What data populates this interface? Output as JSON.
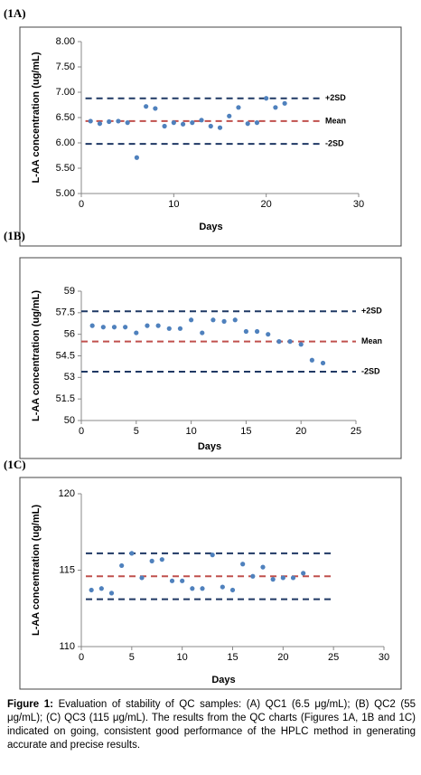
{
  "chart_data": [
    {
      "type": "scatter",
      "panel": "(1A)",
      "ylabel": "L-AA concentration (ug/mL)",
      "xlabel": "Days",
      "xlim": [
        0,
        30
      ],
      "xticks": [
        0,
        10,
        20,
        30
      ],
      "ylim": [
        5,
        8
      ],
      "yticks": [
        {
          "value": 5,
          "label": "5.00"
        },
        {
          "value": 5.5,
          "label": "5.50"
        },
        {
          "value": 6,
          "label": "6.00"
        },
        {
          "value": 6.5,
          "label": "6.50"
        },
        {
          "value": 7,
          "label": "7.00"
        },
        {
          "value": 7.5,
          "label": "7.50"
        },
        {
          "value": 8,
          "label": "8.00"
        }
      ],
      "color": "#4f81bd",
      "x": [
        1,
        2,
        3,
        4,
        5,
        6,
        7,
        8,
        9,
        10,
        11,
        12,
        13,
        14,
        15,
        16,
        17,
        18,
        19,
        20,
        21,
        22
      ],
      "values": [
        6.43,
        6.38,
        6.42,
        6.43,
        6.4,
        5.71,
        6.72,
        6.68,
        6.33,
        6.4,
        6.37,
        6.4,
        6.45,
        6.33,
        6.3,
        6.53,
        6.7,
        6.38,
        6.4,
        6.88,
        6.7,
        6.78
      ],
      "lines": [
        {
          "label": "+2SD",
          "value": 6.88,
          "color": "#1f3864"
        },
        {
          "label": "Mean",
          "value": 6.43,
          "color": "#c0504d"
        },
        {
          "label": "-2SD",
          "value": 5.98,
          "color": "#1f3864"
        }
      ]
    },
    {
      "type": "scatter",
      "panel": "(1B)",
      "ylabel": "L-AA concentration (ug/mL)",
      "xlabel": "Days",
      "xlim": [
        0,
        25
      ],
      "xticks": [
        0,
        5,
        10,
        15,
        20,
        25
      ],
      "ylim": [
        50,
        59
      ],
      "yticks": [
        50,
        51.5,
        53,
        54.5,
        56,
        57.5,
        59
      ],
      "color": "#4f81bd",
      "x": [
        1,
        2,
        3,
        4,
        5,
        6,
        7,
        8,
        9,
        10,
        11,
        12,
        13,
        14,
        15,
        16,
        17,
        18,
        19,
        20,
        21,
        22
      ],
      "values": [
        56.6,
        56.5,
        56.5,
        56.5,
        56.1,
        56.6,
        56.6,
        56.4,
        56.4,
        57.0,
        56.1,
        57.0,
        56.9,
        57.0,
        56.2,
        56.2,
        56.0,
        55.5,
        55.5,
        55.3,
        54.2,
        54.0
      ],
      "lines": [
        {
          "label": "+2SD",
          "value": 57.6,
          "color": "#1f3864"
        },
        {
          "label": "Mean",
          "value": 55.5,
          "color": "#c0504d"
        },
        {
          "label": "-2SD",
          "value": 53.4,
          "color": "#1f3864"
        }
      ]
    },
    {
      "type": "scatter",
      "panel": "(1C)",
      "ylabel": "L-AA concentration (ug/mL)",
      "xlabel": "Days",
      "xlim": [
        0,
        30
      ],
      "xticks": [
        0,
        5,
        10,
        15,
        20,
        25,
        30
      ],
      "ylim": [
        110,
        120
      ],
      "yticks": [
        110,
        115,
        120
      ],
      "color": "#4f81bd",
      "x": [
        1,
        2,
        3,
        4,
        5,
        6,
        7,
        8,
        9,
        10,
        11,
        12,
        13,
        14,
        15,
        16,
        17,
        18,
        19,
        20,
        21,
        22
      ],
      "values": [
        113.7,
        113.8,
        113.5,
        115.3,
        116.1,
        114.5,
        115.6,
        115.7,
        114.3,
        114.3,
        113.8,
        113.8,
        116.0,
        113.9,
        113.7,
        115.4,
        114.6,
        115.2,
        114.4,
        114.5,
        114.5,
        114.8
      ],
      "lines": [
        {
          "value": 116.1,
          "color": "#1f3864"
        },
        {
          "value": 114.6,
          "color": "#c0504d"
        },
        {
          "value": 113.1,
          "color": "#1f3864"
        }
      ]
    }
  ],
  "caption_label": "Figure 1:",
  "caption_text": "Evaluation of stability of QC samples: (A) QC1 (6.5 μg/mL); (B) QC2 (55 μg/mL); (C) QC3 (115 μg/mL). The results from the QC charts (Figures 1A, 1B and 1C) indicated on going, consistent good performance of the HPLC method in generating accurate and precise results."
}
